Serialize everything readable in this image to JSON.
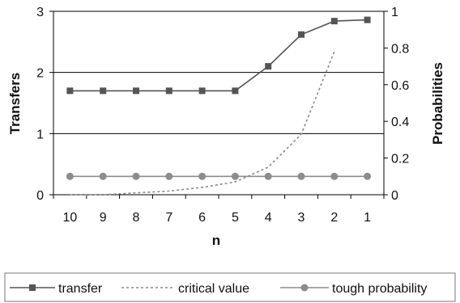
{
  "chart_data": {
    "type": "line",
    "title": "",
    "xlabel": "n",
    "ylabel": "Transfers",
    "y2label": "Probabilities",
    "categories": [
      "10",
      "9",
      "8",
      "7",
      "6",
      "5",
      "4",
      "3",
      "2",
      "1"
    ],
    "ylim": [
      0,
      3
    ],
    "y2lim": [
      0,
      1
    ],
    "y_ticks": [
      "0",
      "1",
      "2",
      "3"
    ],
    "y2_ticks": [
      "0",
      "0.2",
      "0.4",
      "0.6",
      "0.8",
      "1"
    ],
    "grid": "horizontal",
    "legend_position": "bottom",
    "series": [
      {
        "name": "transfer",
        "axis": "left",
        "style": "solid-square",
        "color": "#555555",
        "values": [
          1.7,
          1.7,
          1.7,
          1.7,
          1.7,
          1.7,
          2.1,
          2.62,
          2.84,
          2.86
        ]
      },
      {
        "name": "critical value",
        "axis": "right",
        "style": "dotted",
        "color": "#8a8a8a",
        "values": [
          0.0,
          0.0,
          0.01,
          0.02,
          0.04,
          0.07,
          0.15,
          0.33,
          0.78,
          null
        ]
      },
      {
        "name": "tough probability",
        "axis": "right",
        "style": "solid-circle",
        "color": "#8c8c8c",
        "values": [
          0.1,
          0.1,
          0.1,
          0.1,
          0.1,
          0.1,
          0.1,
          0.1,
          0.1,
          0.1
        ]
      }
    ]
  }
}
